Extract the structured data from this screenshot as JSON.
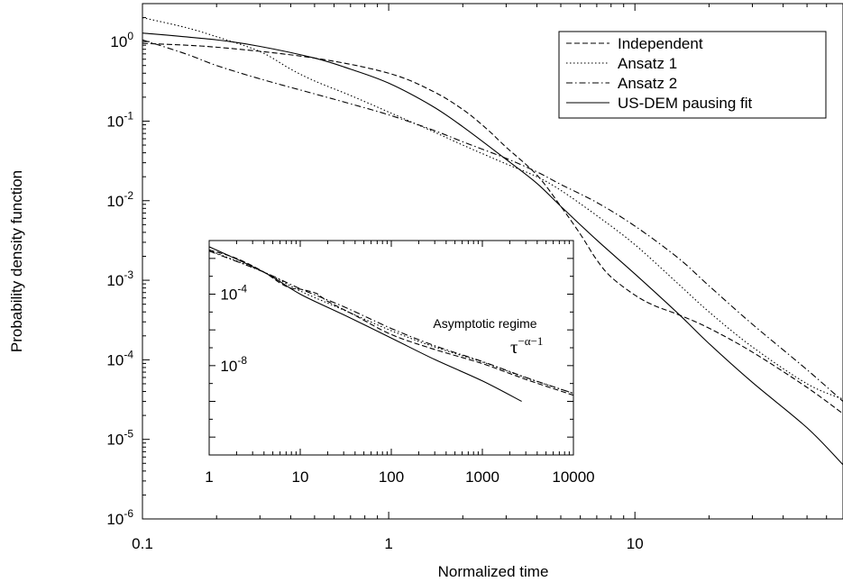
{
  "chart_data": [
    {
      "type": "line",
      "panel": "main",
      "xlabel": "Normalized time",
      "ylabel": "Probability density function",
      "xscale": "log",
      "yscale": "log",
      "xlim": [
        0.1,
        70
      ],
      "ylim": [
        1e-06,
        3
      ],
      "grid": false,
      "legend_position": "top-right",
      "x_ticks": [
        {
          "value": 0.1,
          "label": "0.1"
        },
        {
          "value": 1,
          "label": "1"
        },
        {
          "value": 10,
          "label": "10"
        }
      ],
      "y_ticks": [
        {
          "value": 1e-06,
          "base": "10",
          "exp": "-6"
        },
        {
          "value": 1e-05,
          "base": "10",
          "exp": "-5"
        },
        {
          "value": 0.0001,
          "base": "10",
          "exp": "-4"
        },
        {
          "value": 0.001,
          "base": "10",
          "exp": "-3"
        },
        {
          "value": 0.01,
          "base": "10",
          "exp": "-2"
        },
        {
          "value": 0.1,
          "base": "10",
          "exp": "-1"
        },
        {
          "value": 1,
          "base": "10",
          "exp": "0"
        }
      ],
      "series": [
        {
          "name": "Independent",
          "style": "dashed",
          "points": [
            [
              0.1,
              0.95
            ],
            [
              0.2,
              0.85
            ],
            [
              0.5,
              0.62
            ],
            [
              1,
              0.4
            ],
            [
              1.5,
              0.24
            ],
            [
              2,
              0.14
            ],
            [
              2.5,
              0.08
            ],
            [
              3,
              0.047
            ],
            [
              4,
              0.021
            ],
            [
              5,
              0.0085
            ],
            [
              6,
              0.0038
            ],
            [
              7,
              0.0018
            ],
            [
              8,
              0.0011
            ],
            [
              10,
              0.00065
            ],
            [
              12,
              0.00048
            ],
            [
              15,
              0.00037
            ],
            [
              20,
              0.00025
            ],
            [
              30,
              0.000125
            ],
            [
              50,
              4.5e-05
            ],
            [
              70,
              2.1e-05
            ]
          ]
        },
        {
          "name": "Ansatz 1",
          "style": "dotted",
          "points": [
            [
              0.1,
              2.0
            ],
            [
              0.15,
              1.5
            ],
            [
              0.2,
              1.15
            ],
            [
              0.3,
              0.75
            ],
            [
              0.4,
              0.45
            ],
            [
              0.5,
              0.32
            ],
            [
              0.7,
              0.21
            ],
            [
              1,
              0.13
            ],
            [
              1.5,
              0.075
            ],
            [
              2,
              0.05
            ],
            [
              3,
              0.029
            ],
            [
              4,
              0.02
            ],
            [
              5,
              0.0135
            ],
            [
              7,
              0.0065
            ],
            [
              10,
              0.0028
            ],
            [
              15,
              0.0009
            ],
            [
              20,
              0.0004
            ],
            [
              30,
              0.000145
            ],
            [
              50,
              5e-05
            ],
            [
              70,
              3.2e-05
            ]
          ]
        },
        {
          "name": "Ansatz 2",
          "style": "dashdot",
          "points": [
            [
              0.1,
              1.05
            ],
            [
              0.15,
              0.7
            ],
            [
              0.2,
              0.5
            ],
            [
              0.3,
              0.34
            ],
            [
              0.5,
              0.22
            ],
            [
              0.7,
              0.165
            ],
            [
              1,
              0.12
            ],
            [
              1.5,
              0.078
            ],
            [
              2,
              0.055
            ],
            [
              3,
              0.034
            ],
            [
              4,
              0.023
            ],
            [
              5,
              0.016
            ],
            [
              7,
              0.0095
            ],
            [
              10,
              0.0048
            ],
            [
              15,
              0.0019
            ],
            [
              20,
              0.00085
            ],
            [
              30,
              0.00028
            ],
            [
              50,
              7.5e-05
            ],
            [
              70,
              3e-05
            ]
          ]
        },
        {
          "name": "US-DEM pausing fit",
          "style": "solid",
          "points": [
            [
              0.1,
              1.28
            ],
            [
              0.2,
              1.05
            ],
            [
              0.3,
              0.87
            ],
            [
              0.5,
              0.62
            ],
            [
              0.7,
              0.45
            ],
            [
              1,
              0.3
            ],
            [
              1.5,
              0.155
            ],
            [
              2,
              0.085
            ],
            [
              3,
              0.033
            ],
            [
              4,
              0.0165
            ],
            [
              5,
              0.0085
            ],
            [
              7,
              0.0032
            ],
            [
              10,
              0.0012
            ],
            [
              15,
              0.00038
            ],
            [
              20,
              0.00016
            ],
            [
              30,
              5.2e-05
            ],
            [
              50,
              1.4e-05
            ],
            [
              70,
              4.8e-06
            ]
          ]
        }
      ]
    },
    {
      "type": "line",
      "panel": "inset",
      "xscale": "log",
      "yscale": "log",
      "xlim": [
        1,
        10000
      ],
      "ylim": [
        1e-13,
        0.1
      ],
      "grid": false,
      "x_ticks": [
        {
          "value": 1,
          "label": "1"
        },
        {
          "value": 10,
          "label": "10"
        },
        {
          "value": 100,
          "label": "100"
        },
        {
          "value": 1000,
          "label": "1000"
        },
        {
          "value": 10000,
          "label": "10000"
        }
      ],
      "y_ticks": [
        {
          "value": 0.0001,
          "base": "10",
          "exp": "-4"
        },
        {
          "value": 1e-08,
          "base": "10",
          "exp": "-8"
        }
      ],
      "annotation": {
        "text": "Asymptotic regime",
        "formula_base": "τ",
        "formula_exp": "−α−1"
      },
      "series": [
        {
          "name": "Independent",
          "style": "dashed",
          "points": [
            [
              1,
              0.03
            ],
            [
              2,
              0.01
            ],
            [
              4,
              0.0017
            ],
            [
              6,
              0.00042
            ],
            [
              8,
              0.00021
            ],
            [
              10,
              0.00019
            ],
            [
              15,
              0.00011
            ],
            [
              20,
              4e-05
            ],
            [
              40,
              6.5e-06
            ],
            [
              100,
              5.5e-07
            ],
            [
              300,
              8e-08
            ],
            [
              1000,
              1.3e-08
            ],
            [
              3000,
              1.7e-09
            ],
            [
              10000,
              2.2e-10
            ]
          ]
        },
        {
          "name": "Ansatz 1",
          "style": "dotted",
          "points": [
            [
              1,
              0.028
            ],
            [
              4,
              0.0017
            ],
            [
              10,
              0.00015
            ],
            [
              30,
              1.3e-05
            ],
            [
              100,
              9e-07
            ],
            [
              300,
              1.1e-07
            ],
            [
              1000,
              1.6e-08
            ],
            [
              3000,
              2.1e-09
            ],
            [
              10000,
              2.8e-10
            ]
          ]
        },
        {
          "name": "Ansatz 2",
          "style": "dashdot",
          "points": [
            [
              1,
              0.026
            ],
            [
              4,
              0.0017
            ],
            [
              10,
              0.0002
            ],
            [
              30,
              2e-05
            ],
            [
              100,
              1.2e-06
            ],
            [
              300,
              1.3e-07
            ],
            [
              1000,
              1.7e-08
            ],
            [
              3000,
              2.2e-09
            ],
            [
              10000,
              2.8e-10
            ]
          ]
        },
        {
          "name": "US-DEM pausing fit",
          "style": "solid",
          "points": [
            [
              1,
              0.045
            ],
            [
              4,
              0.0017
            ],
            [
              10,
              0.0001
            ],
            [
              30,
              7e-06
            ],
            [
              100,
              3.5e-07
            ],
            [
              300,
              2.2e-08
            ],
            [
              1000,
              1.4e-09
            ],
            [
              2700,
              1e-10
            ]
          ]
        }
      ]
    }
  ]
}
